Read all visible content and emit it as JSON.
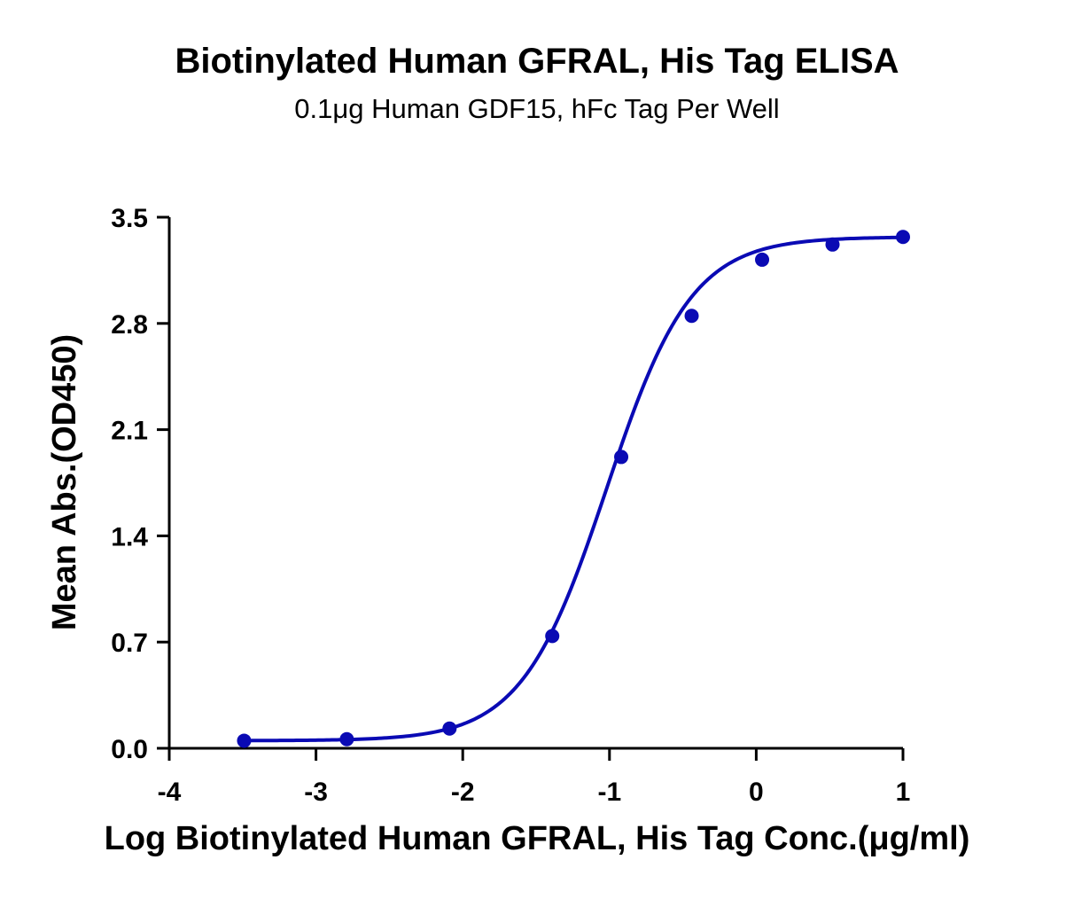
{
  "chart_data": {
    "type": "scatter",
    "title": "Biotinylated Human GFRAL, His Tag ELISA",
    "subtitle": "0.1μg Human GDF15, hFc Tag Per Well",
    "xlabel": "Log Biotinylated Human GFRAL, His Tag Conc.(μg/ml)",
    "ylabel": "Mean Abs.(OD450)",
    "xlim": [
      -4,
      1
    ],
    "ylim": [
      0,
      3.5
    ],
    "x_ticks": [
      "-4",
      "-3",
      "-2",
      "-1",
      "0",
      "1"
    ],
    "y_ticks": [
      "0.0",
      "0.7",
      "1.4",
      "2.1",
      "2.8",
      "3.5"
    ],
    "grid": false,
    "legend": "none",
    "series_color": "#0a0ab4",
    "points": {
      "x": [
        -3.49,
        -2.79,
        -2.09,
        -1.39,
        -0.92,
        -0.44,
        0.04,
        0.52,
        1.0
      ],
      "y": [
        0.05,
        0.06,
        0.13,
        0.74,
        1.92,
        2.85,
        3.22,
        3.32,
        3.37
      ]
    },
    "fit": {
      "model": "four-parameter logistic",
      "bottom": 0.05,
      "top": 3.37,
      "log_ec50": -1.02,
      "hill_slope": 1.5
    }
  }
}
